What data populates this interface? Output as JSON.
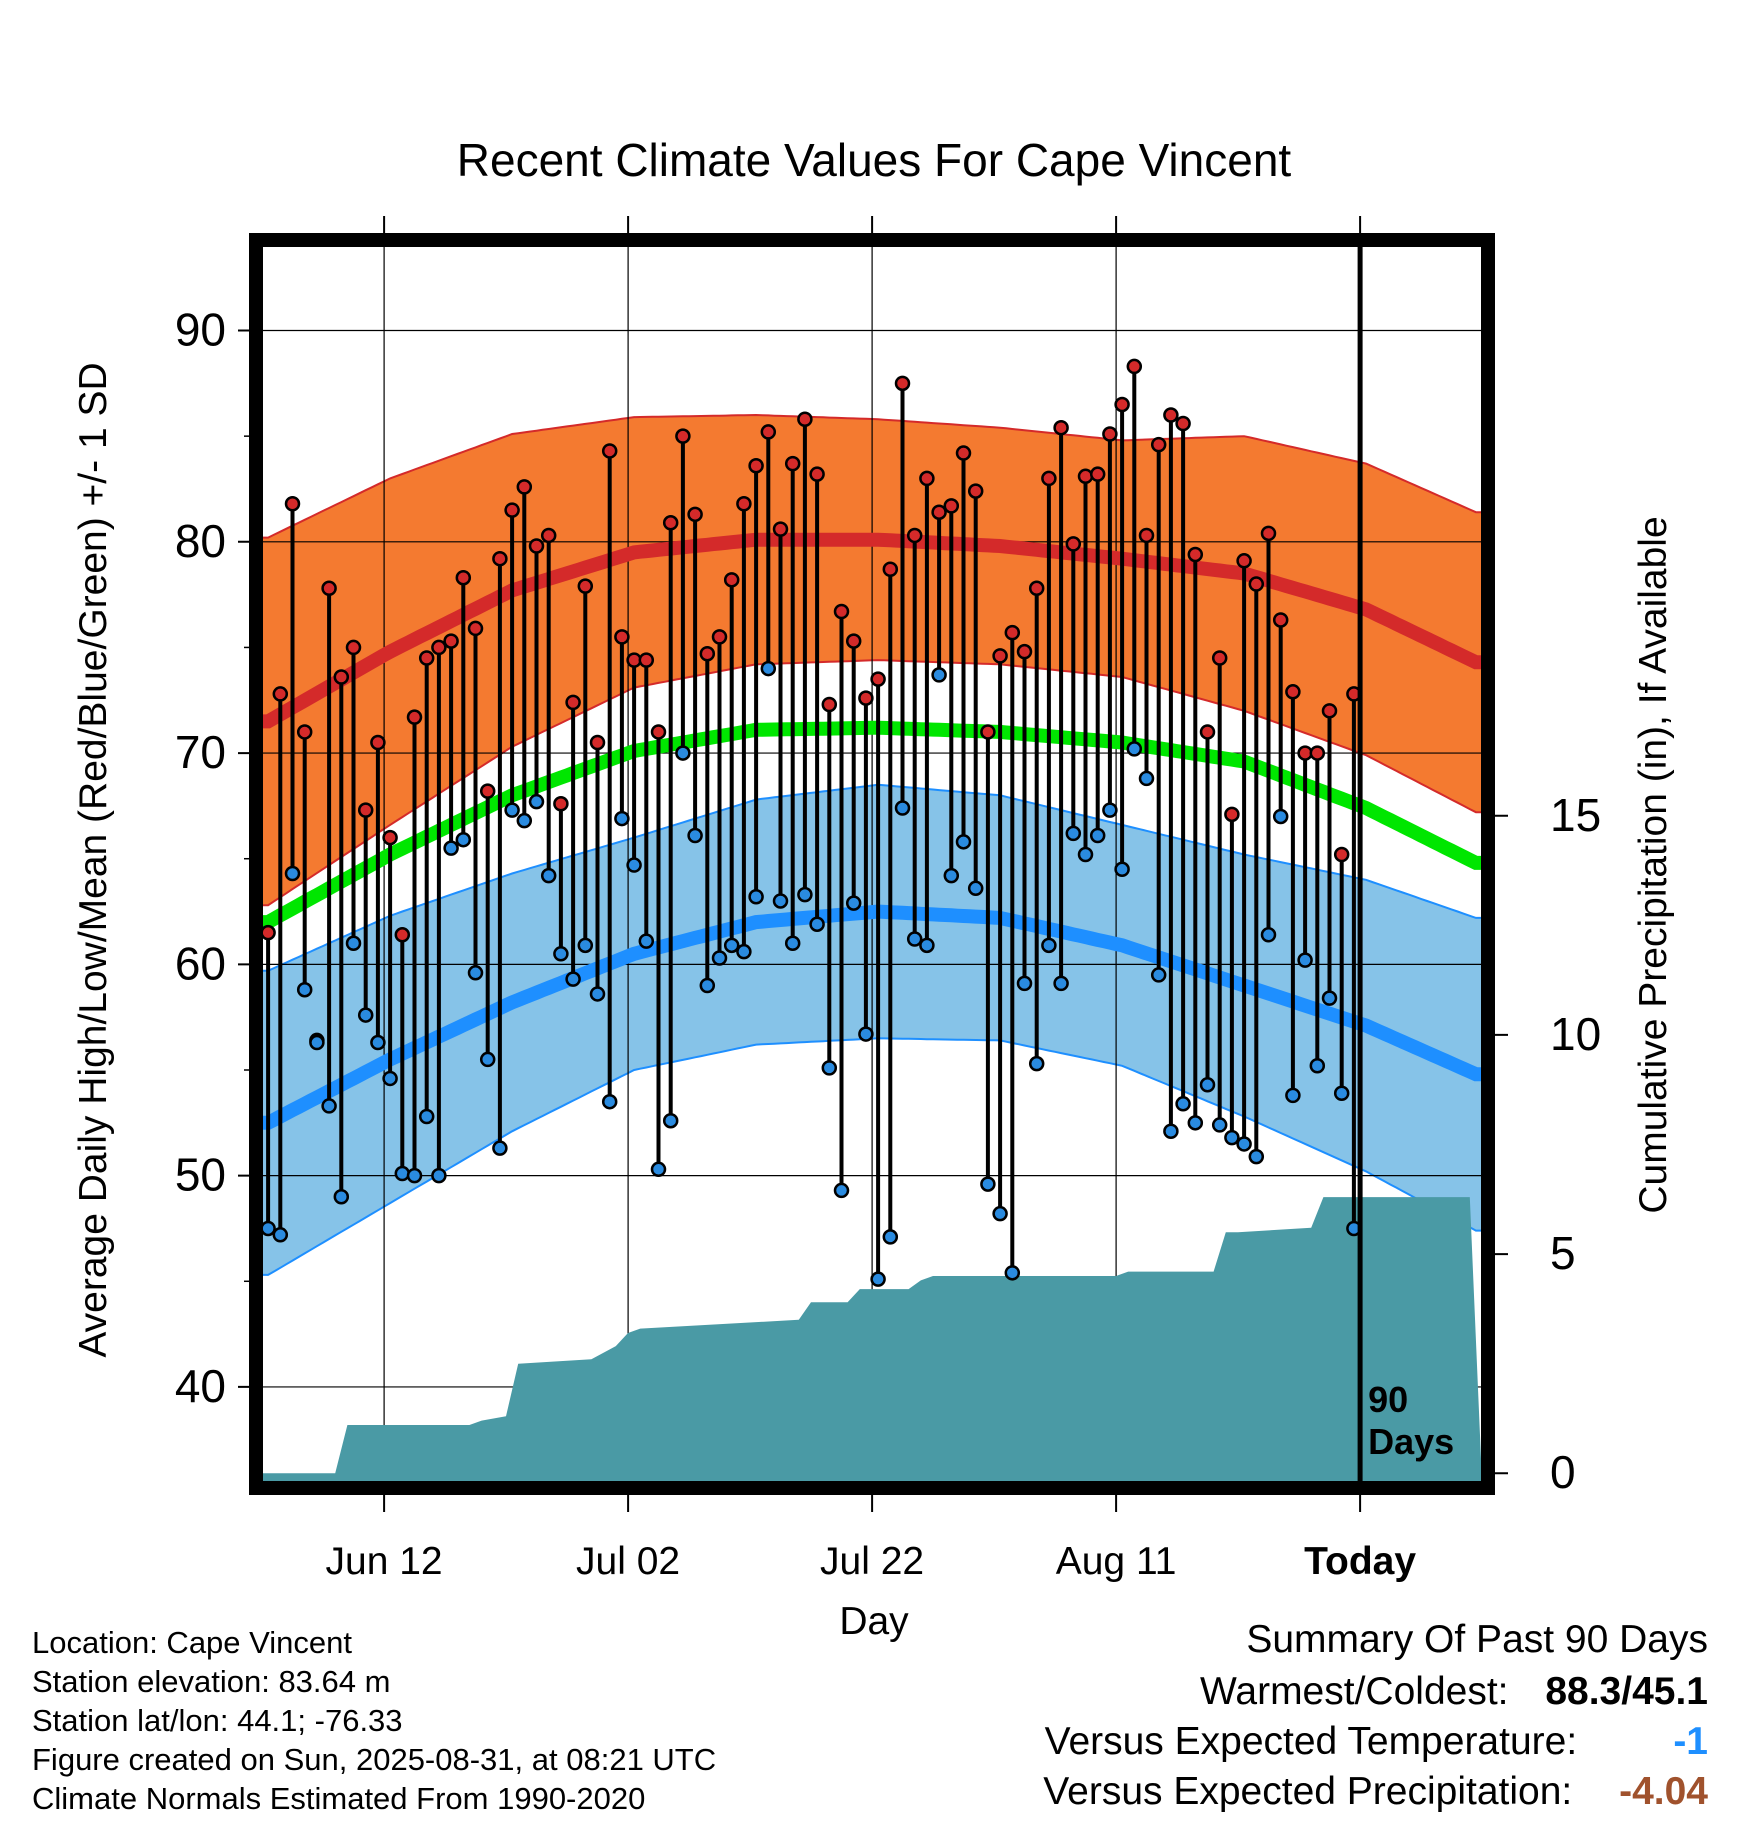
{
  "chart_data": {
    "type": "line",
    "title": "Recent Climate Values For Cape Vincent",
    "xlabel": "Day",
    "ylabel": "Average Daily High/Low/Mean (Red/Blue/Green) +/- 1 SD",
    "y2label": "Cumulative Precipitation (in), If Available",
    "ylim": [
      35.5,
      94
    ],
    "y2lim": [
      -0.2,
      28
    ],
    "y_ticks": [
      "40",
      "50",
      "60",
      "70",
      "80",
      "90"
    ],
    "y2_ticks": [
      "0",
      "5",
      "10",
      "15"
    ],
    "x_ticks": [
      "Jun 12",
      "Jul 02",
      "Jul 22",
      "Aug 11",
      "Today"
    ],
    "x_tick_days": [
      10,
      30,
      50,
      70,
      90
    ],
    "today_label": "90\nDays",
    "colors": {
      "high_band": "#f47a30",
      "high_normal": "#d42a2a",
      "low_band": "#86c3e8",
      "low_normal": "#1e8fff",
      "mean_normal": "#00e600",
      "precip": "#4a9aa5",
      "high_point": "#d42a2a",
      "low_point": "#2a8be0"
    },
    "normals": {
      "days": [
        0,
        10,
        20,
        30,
        40,
        50,
        60,
        70,
        80,
        90,
        99
      ],
      "high_mean": [
        71.5,
        74.8,
        77.7,
        79.5,
        80.1,
        80.1,
        79.8,
        79.2,
        78.5,
        76.8,
        74.3
      ],
      "high_sd": [
        8.7,
        8.2,
        7.4,
        6.4,
        5.9,
        5.7,
        5.6,
        5.6,
        6.5,
        6.9,
        7.1
      ],
      "low_mean": [
        52.5,
        55.5,
        58.2,
        60.5,
        62.0,
        62.5,
        62.2,
        60.9,
        59.0,
        57.1,
        54.8
      ],
      "low_sd": [
        7.2,
        6.8,
        6.1,
        5.5,
        5.8,
        6.0,
        5.8,
        5.7,
        6.2,
        6.9,
        7.4
      ],
      "mean_mean": [
        62.0,
        65.2,
        68.0,
        70.1,
        71.1,
        71.2,
        71.0,
        70.5,
        69.6,
        67.4,
        64.8
      ]
    },
    "series": [
      {
        "name": "High",
        "values": [
          61.5,
          72.8,
          81.8,
          71.0,
          56.4,
          77.8,
          73.6,
          75.0,
          67.3,
          70.5,
          66.0,
          61.4,
          71.7,
          74.5,
          75.0,
          75.3,
          78.3,
          75.9,
          68.2,
          79.2,
          81.5,
          82.6,
          79.8,
          80.3,
          67.6,
          72.4,
          77.9,
          70.5,
          84.3,
          75.5,
          74.4,
          74.4,
          71.0,
          80.9,
          85.0,
          81.3,
          74.7,
          75.5,
          78.2,
          81.8,
          83.6,
          85.2,
          80.6,
          83.7,
          85.8,
          83.2,
          72.3,
          76.7,
          75.3,
          72.6,
          73.5,
          78.7,
          87.5,
          80.3,
          83.0,
          81.4,
          81.7,
          84.2,
          82.4,
          71.0,
          74.6,
          75.7,
          74.8,
          77.8,
          83.0,
          85.4,
          79.9,
          83.1,
          83.2,
          85.1,
          86.5,
          88.3,
          80.3,
          84.6,
          86.0,
          85.6,
          79.4,
          71.0,
          74.5,
          67.1,
          79.1,
          78.0,
          80.4,
          76.3,
          72.9,
          70.0,
          70.0,
          72.0,
          65.2,
          72.8
        ]
      },
      {
        "name": "Low",
        "values": [
          47.5,
          47.2,
          64.3,
          58.8,
          56.3,
          53.3,
          49.0,
          61.0,
          57.6,
          56.3,
          54.6,
          50.1,
          50.0,
          52.8,
          50.0,
          65.5,
          65.9,
          59.6,
          55.5,
          51.3,
          67.3,
          66.8,
          67.7,
          64.2,
          60.5,
          59.3,
          60.9,
          58.6,
          53.5,
          66.9,
          64.7,
          61.1,
          50.3,
          52.6,
          70.0,
          66.1,
          59.0,
          60.3,
          60.9,
          60.6,
          63.2,
          74.0,
          63.0,
          61.0,
          63.3,
          61.9,
          55.1,
          49.3,
          62.9,
          56.7,
          45.1,
          47.1,
          67.4,
          61.2,
          60.9,
          73.7,
          64.2,
          65.8,
          63.6,
          49.6,
          48.2,
          45.4,
          59.1,
          55.3,
          60.9,
          59.1,
          66.2,
          65.2,
          66.1,
          67.3,
          64.5,
          70.2,
          68.8,
          59.5,
          52.1,
          53.4,
          52.5,
          54.3,
          52.4,
          51.8,
          51.5,
          50.9,
          61.4,
          67.0,
          53.8,
          60.2,
          55.2,
          58.4,
          53.9,
          47.5
        ]
      },
      {
        "name": "Cumulative Precipitation",
        "days": [
          0,
          6,
          7,
          17,
          18,
          20,
          21,
          27,
          29,
          30,
          31,
          44,
          45,
          48,
          49,
          53,
          54,
          55,
          65,
          66,
          70,
          71,
          72,
          78,
          79,
          80,
          86,
          87,
          89,
          90,
          99
        ],
        "values": [
          0,
          0,
          1.1,
          1.1,
          1.2,
          1.3,
          2.5,
          2.6,
          2.9,
          3.2,
          3.3,
          3.5,
          3.9,
          3.9,
          4.2,
          4.2,
          4.4,
          4.5,
          4.5,
          4.5,
          4.5,
          4.6,
          4.6,
          4.6,
          5.5,
          5.5,
          5.6,
          6.3,
          6.3,
          6.3,
          6.3
        ]
      }
    ]
  },
  "info": {
    "location": "Location: Cape Vincent",
    "elevation": "Station elevation: 83.64 m",
    "latlon": "Station lat/lon: 44.1; -76.33",
    "created": "Figure created on Sun, 2025-08-31, at 08:21 UTC",
    "normals": "Climate Normals Estimated From 1990-2020"
  },
  "summary": {
    "title": "Summary Of Past 90 Days",
    "warm_cold_label": "Warmest/Coldest:",
    "warm_cold_value": "88.3/45.1",
    "temp_label": "Versus Expected Temperature:",
    "temp_value": "-1",
    "temp_color": "#1e8fff",
    "precip_label": "Versus Expected Precipitation:",
    "precip_value": "-4.04",
    "precip_color": "#a0522d"
  }
}
